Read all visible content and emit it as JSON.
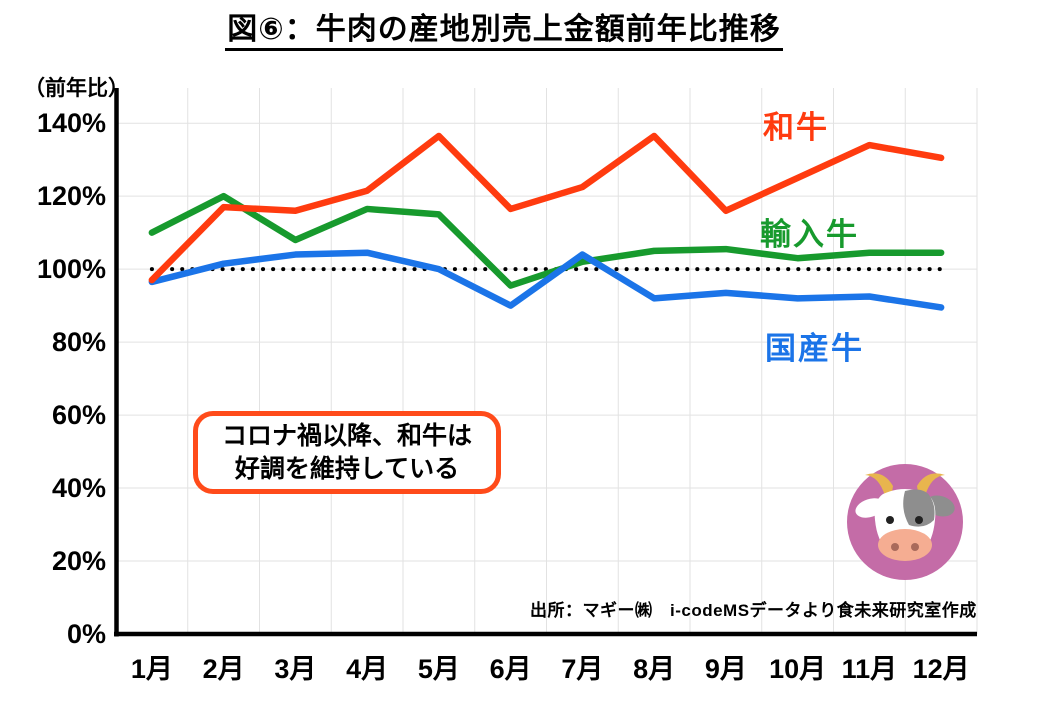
{
  "title": "図⑥：牛肉の産地別売上金額前年比推移",
  "y_axis_unit": "（前年比）",
  "chart_data": {
    "type": "line",
    "categories": [
      "1月",
      "2月",
      "3月",
      "4月",
      "5月",
      "6月",
      "7月",
      "8月",
      "9月",
      "10月",
      "11月",
      "12月"
    ],
    "series": [
      {
        "name": "和牛",
        "color": "#ff3b0f",
        "values": [
          97,
          117,
          116,
          121.5,
          136.5,
          116.5,
          122.5,
          136.5,
          116,
          125,
          134,
          130.5
        ]
      },
      {
        "name": "輸入牛",
        "color": "#179a2d",
        "values": [
          110,
          120,
          108,
          116.5,
          115,
          95.5,
          102,
          105,
          105.5,
          103,
          104.5,
          104.5
        ]
      },
      {
        "name": "国産牛",
        "color": "#1b74e8",
        "values": [
          96.5,
          101.5,
          104,
          104.5,
          100,
          90,
          104,
          92,
          93.5,
          92,
          92.5,
          89.5
        ]
      }
    ],
    "ylim": [
      0,
      140
    ],
    "y_ticks": [
      0,
      20,
      40,
      60,
      80,
      100,
      120,
      140
    ],
    "y_tick_suffix": "%",
    "reference_line": 100,
    "grid": true,
    "legend_position": "right-inline",
    "colors": {
      "grid": "#e2e2e2",
      "axis": "#000000",
      "reference": "#000000"
    }
  },
  "annotation": {
    "line1": "コロナ禍以降、和牛は",
    "line2": "好調を維持している",
    "border_color": "#ff4b1a"
  },
  "source": "出所：マギー㈱　i-codeMSデータより食未来研究室作成",
  "cow_icon": {
    "circle": "#c46ca7",
    "face": "#ffffff",
    "patch": "#8e8e8e",
    "horn": "#e8b54e",
    "muzzle": "#f5ad92",
    "nostril": "#a96a5b",
    "eye": "#222222"
  }
}
